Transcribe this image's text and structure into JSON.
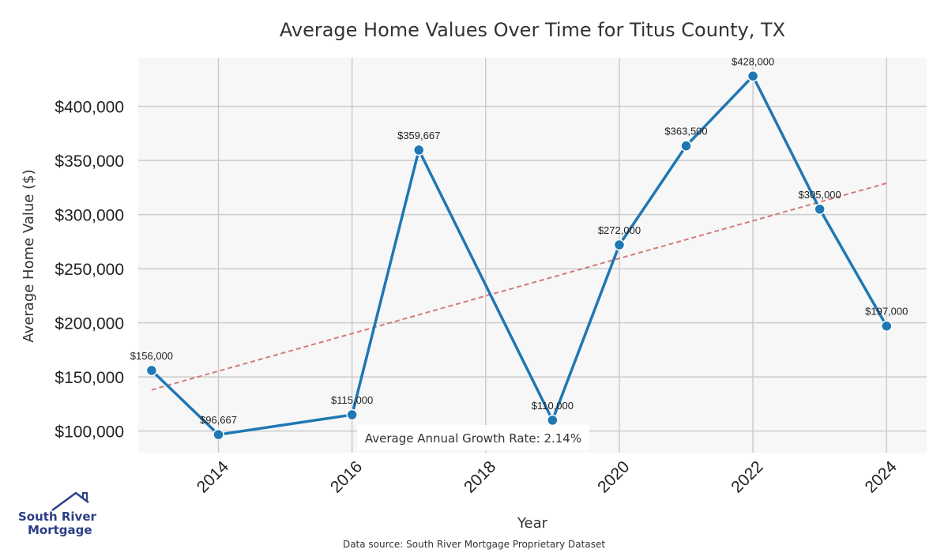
{
  "chart_data": {
    "type": "line",
    "title": "Average Home Values Over Time for Titus County, TX",
    "xlabel": "Year",
    "ylabel": "Average Home Value ($)",
    "xlim": [
      2012.8,
      2024.6
    ],
    "ylim": [
      80000,
      445000
    ],
    "x_ticks": [
      2014,
      2016,
      2018,
      2020,
      2022,
      2024
    ],
    "x_tick_labels": [
      "2014",
      "2016",
      "2018",
      "2020",
      "2022",
      "2024"
    ],
    "y_ticks": [
      100000,
      150000,
      200000,
      250000,
      300000,
      350000,
      400000
    ],
    "y_tick_labels": [
      "$100,000",
      "$150,000",
      "$200,000",
      "$250,000",
      "$300,000",
      "$350,000",
      "$400,000"
    ],
    "grid": true,
    "series": [
      {
        "color": "#1f77b4",
        "points": [
          {
            "x": 2013,
            "y": 156000,
            "label": "$156,000"
          },
          {
            "x": 2014,
            "y": 96667,
            "label": "$96,667"
          },
          {
            "x": 2016,
            "y": 115000,
            "label": "$115,000"
          },
          {
            "x": 2017,
            "y": 359667,
            "label": "$359,667"
          },
          {
            "x": 2019,
            "y": 110000,
            "label": "$110,000"
          },
          {
            "x": 2020,
            "y": 272000,
            "label": "$272,000"
          },
          {
            "x": 2021,
            "y": 363500,
            "label": "$363,500"
          },
          {
            "x": 2022,
            "y": 428000,
            "label": "$428,000"
          },
          {
            "x": 2023,
            "y": 305000,
            "label": "$305,000"
          },
          {
            "x": 2024,
            "y": 197000,
            "label": "$197,000"
          }
        ]
      }
    ],
    "trend_line": {
      "style": "dashed",
      "color": "#d47a7a",
      "start": {
        "x": 2013,
        "y": 138000
      },
      "end": {
        "x": 2024,
        "y": 329000
      }
    },
    "annotation": "Average Annual Growth Rate: 2.14%",
    "source": "Data source: South River Mortgage Proprietary Dataset",
    "logo": {
      "line1": "South River",
      "line2": "Mortgage",
      "color": "#2c3e86"
    }
  }
}
